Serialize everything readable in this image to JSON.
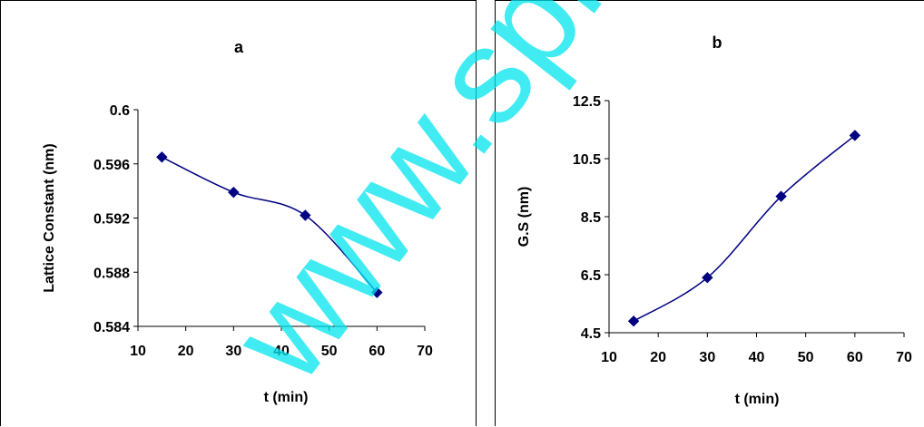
{
  "chart_data": [
    {
      "panel": "a",
      "type": "line",
      "title": "a",
      "xlabel": "t (min)",
      "ylabel": "Lattice Constant (nm)",
      "xlim": [
        10,
        70
      ],
      "ylim": [
        0.584,
        0.6
      ],
      "xticks": [
        "10",
        "20",
        "30",
        "40",
        "50",
        "60",
        "70"
      ],
      "yticks": [
        "0.584",
        "0.588",
        "0.592",
        "0.596",
        "0.6"
      ],
      "x": [
        15,
        30,
        45,
        60
      ],
      "y": [
        0.5965,
        0.5939,
        0.5922,
        0.5865
      ],
      "marker": "diamond",
      "line": "smooth",
      "color": "#000080",
      "grid": false,
      "legend": "none"
    },
    {
      "panel": "b",
      "type": "line",
      "title": "b",
      "xlabel": "t (min)",
      "ylabel": "G.S (nm)",
      "xlim": [
        10,
        70
      ],
      "ylim": [
        4.5,
        12.5
      ],
      "xticks": [
        "10",
        "20",
        "30",
        "40",
        "50",
        "60",
        "70"
      ],
      "yticks": [
        "4.5",
        "6.5",
        "8.5",
        "10.5",
        "12.5"
      ],
      "x": [
        15,
        30,
        45,
        60
      ],
      "y": [
        4.9,
        6.4,
        9.2,
        11.3
      ],
      "marker": "diamond",
      "line": "smooth",
      "color": "#000080",
      "grid": false,
      "legend": "none"
    }
  ],
  "watermark": {
    "text": "www.spm.c",
    "color": "#00e5ee"
  }
}
